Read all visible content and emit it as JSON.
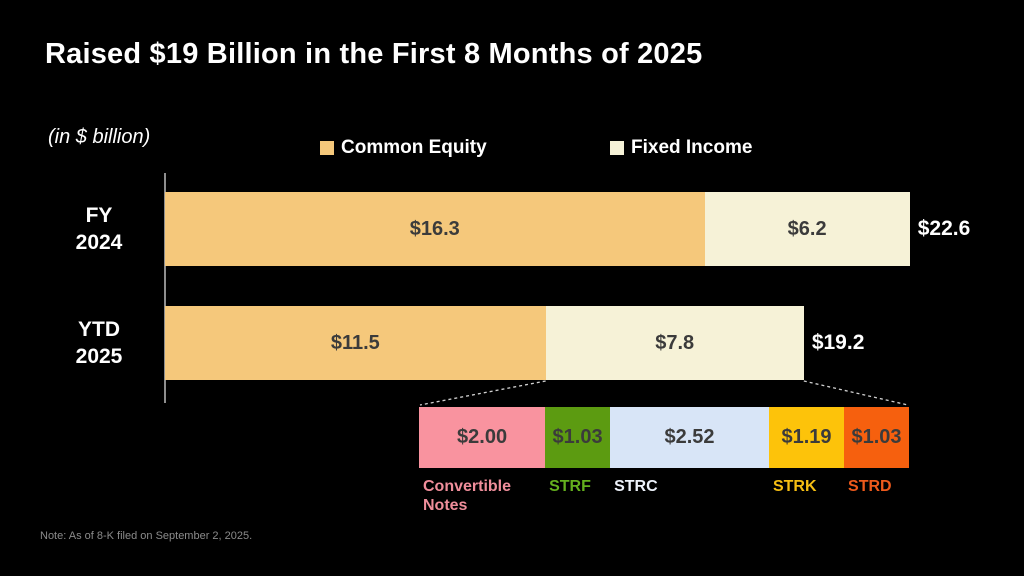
{
  "title": "Raised $19 Billion in the First 8 Months of 2025",
  "units_label": "(in $ billion)",
  "legend": [
    {
      "label": "Common Equity",
      "color": "#f5c87b"
    },
    {
      "label": "Fixed Income",
      "color": "#f6f2d7"
    }
  ],
  "note": "Note: As of 8-K filed on September 2, 2025.",
  "chart_data": {
    "type": "bar",
    "orientation": "horizontal",
    "unit": "$ billion",
    "title": "Raised $19 Billion in the First 8 Months of 2025",
    "categories": [
      "FY 2024",
      "YTD 2025"
    ],
    "series": [
      {
        "name": "Common Equity",
        "color": "#f5c87b",
        "values": [
          16.3,
          11.5
        ]
      },
      {
        "name": "Fixed Income",
        "color": "#f6f2d7",
        "values": [
          6.2,
          7.8
        ]
      }
    ],
    "totals": [
      22.6,
      19.2
    ],
    "bars": [
      {
        "category_lines": [
          "FY",
          "2024"
        ],
        "total_label": "$22.6",
        "segments": [
          {
            "series": "Common Equity",
            "value": 16.3,
            "label": "$16.3"
          },
          {
            "series": "Fixed Income",
            "value": 6.2,
            "label": "$6.2"
          }
        ]
      },
      {
        "category_lines": [
          "YTD",
          "2025"
        ],
        "total_label": "$19.2",
        "segments": [
          {
            "series": "Common Equity",
            "value": 11.5,
            "label": "$11.5"
          },
          {
            "series": "Fixed Income",
            "value": 7.8,
            "label": "$7.8"
          }
        ]
      }
    ],
    "breakdown": {
      "of": "YTD 2025 Fixed Income",
      "segments": [
        {
          "name": "Convertible Notes",
          "value": 2.0,
          "label": "$2.00",
          "color": "#f9939f",
          "label_color": "#f08e9b"
        },
        {
          "name": "STRF",
          "value": 1.03,
          "label": "$1.03",
          "color": "#5c9b11",
          "label_color": "#64b01e"
        },
        {
          "name": "STRC",
          "value": 2.52,
          "label": "$2.52",
          "color": "#d8e5f7",
          "label_color": "#edf2fa"
        },
        {
          "name": "STRK",
          "value": 1.19,
          "label": "$1.19",
          "color": "#fdc30a",
          "label_color": "#f5be13"
        },
        {
          "name": "STRD",
          "value": 1.03,
          "label": "$1.03",
          "color": "#f6600e",
          "label_color": "#ee5a1c"
        }
      ]
    }
  }
}
